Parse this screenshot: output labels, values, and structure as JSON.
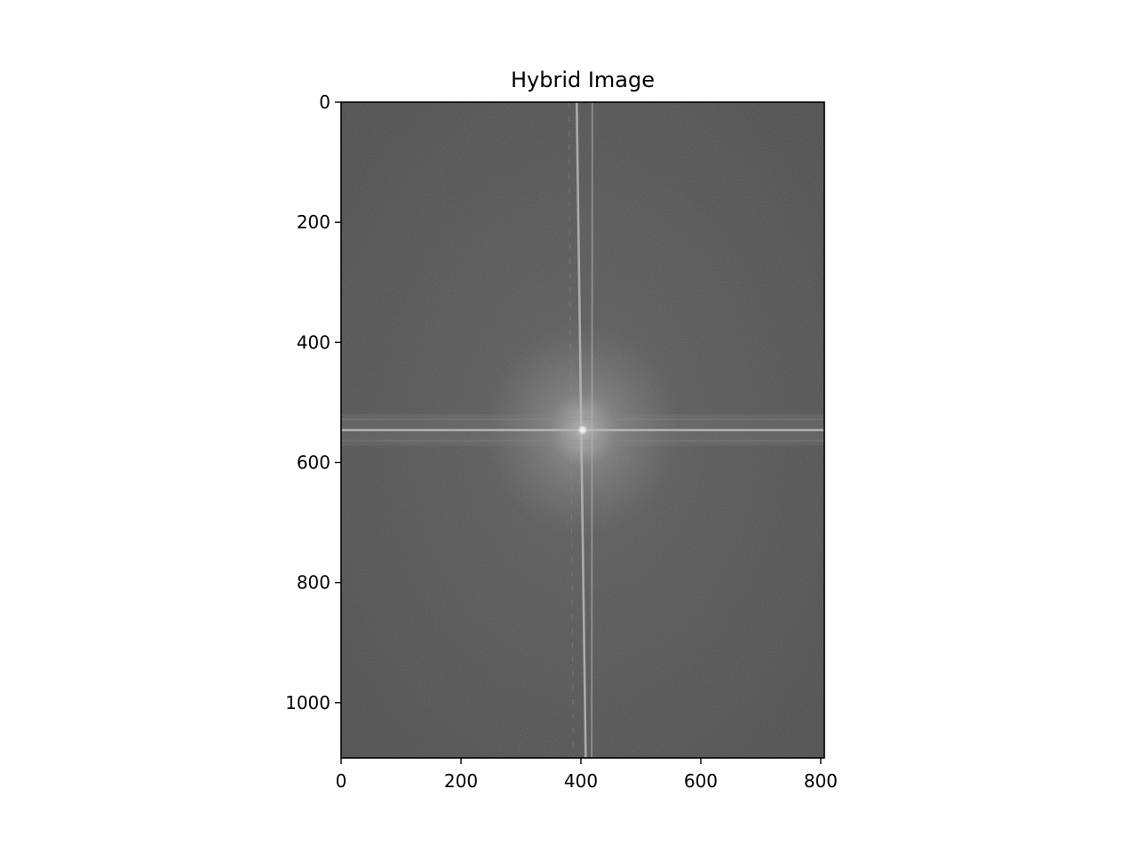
{
  "chart_data": {
    "type": "heatmap",
    "title": "Hybrid Image",
    "description": "Log-magnitude Fourier spectrum displayed in grayscale (imshow)",
    "colormap": "gray",
    "image_shape": {
      "rows": 1092,
      "cols": 806
    },
    "xlim": [
      0,
      806
    ],
    "ylim": [
      1092,
      0
    ],
    "y_axis_inverted": true,
    "x_ticks": [
      0,
      200,
      400,
      600,
      800
    ],
    "y_ticks": [
      0,
      200,
      400,
      600,
      800,
      1000
    ],
    "x_tick_labels": [
      "0",
      "200",
      "400",
      "600",
      "800"
    ],
    "y_tick_labels": [
      "0",
      "200",
      "400",
      "600",
      "800",
      "1000"
    ],
    "xlabel": "",
    "ylabel": "",
    "grid": false,
    "legend": "none",
    "features": {
      "center_peak": {
        "x": 403,
        "y": 546
      },
      "horizontal_streak_y": 546,
      "vertical_streaks": [
        {
          "x_top": 393,
          "x_bottom": 408
        },
        {
          "x_top": 419,
          "x_bottom": 418
        }
      ],
      "background_gray": "#5d5d5d",
      "edge_gray": "#4a4a4a",
      "center_gray": "#a8a8a8",
      "streak_gray": "#b9b9b9"
    }
  }
}
